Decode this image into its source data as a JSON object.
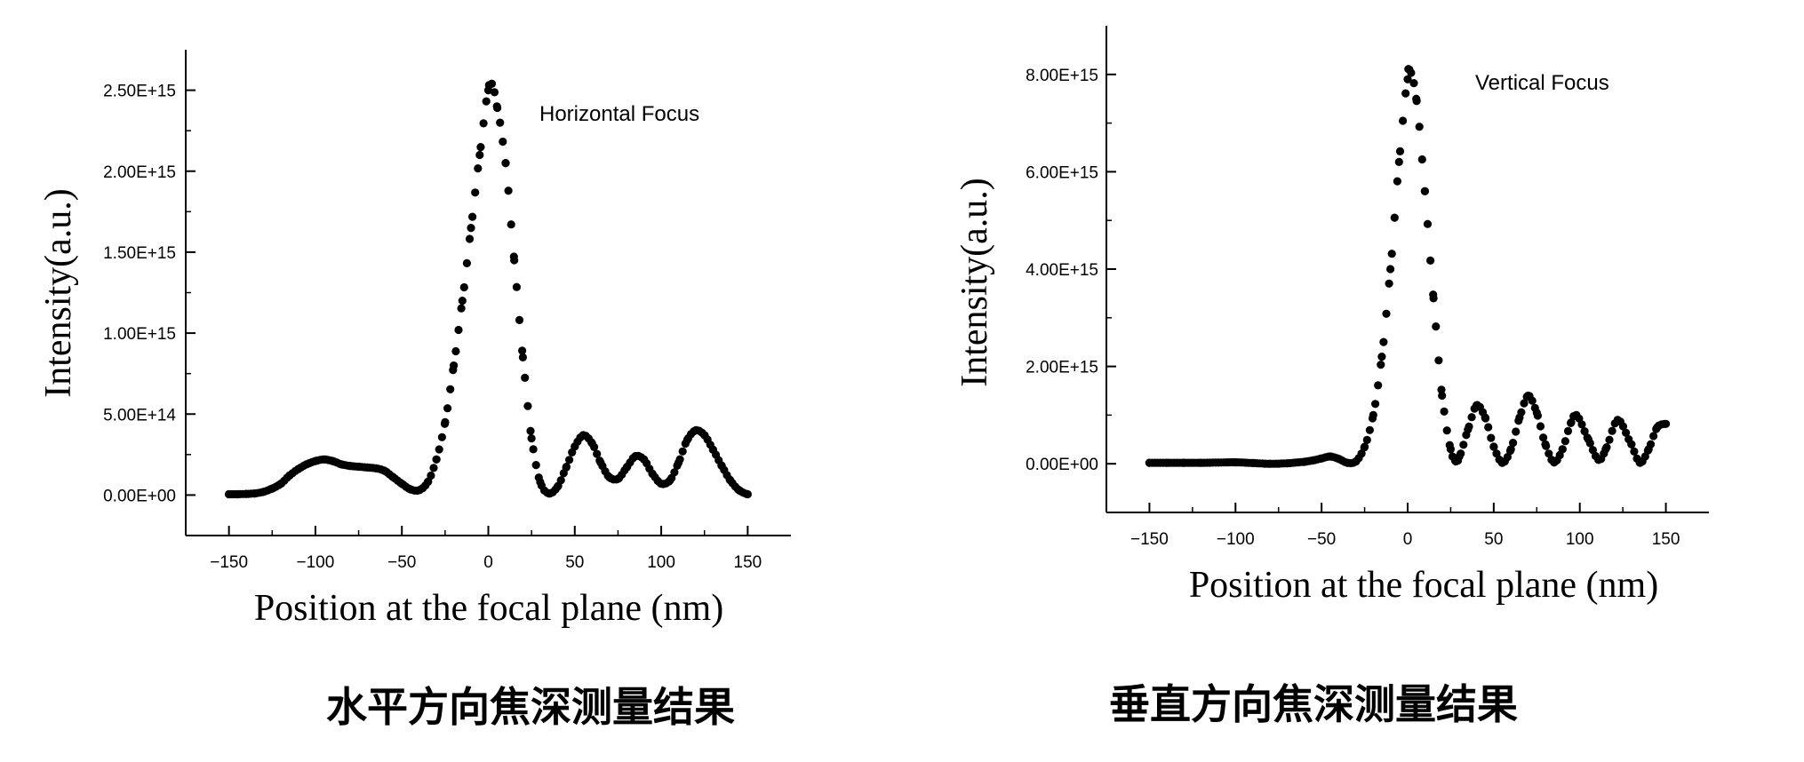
{
  "chart_data": [
    {
      "type": "scatter",
      "annotation": "Horizontal Focus",
      "xlabel": "Position at the focal plane (nm)",
      "ylabel": "Intensity(a.u.)",
      "caption": "水平方向焦深测量结果",
      "xlim": [
        -175,
        175
      ],
      "ylim": [
        -250000000000000.0,
        2750000000000000.0
      ],
      "xticks": [
        -150,
        -100,
        -50,
        0,
        50,
        100,
        150
      ],
      "xtick_labels": [
        "−150",
        "−100",
        "−50",
        "0",
        "50",
        "100",
        "150"
      ],
      "yticks": [
        0,
        500000000000000.0,
        1000000000000000.0,
        1500000000000000.0,
        2000000000000000.0,
        2500000000000000.0
      ],
      "ytick_labels": [
        "0.00E+00",
        "5.00E+14",
        "1.00E+15",
        "1.50E+15",
        "2.00E+15",
        "2.50E+15"
      ],
      "grid": false,
      "marker_color": "#000000",
      "x": [
        -150,
        -145,
        -140,
        -135,
        -130,
        -125,
        -120,
        -115,
        -110,
        -105,
        -100,
        -95,
        -90,
        -85,
        -80,
        -75,
        -70,
        -65,
        -60,
        -55,
        -50,
        -45,
        -40,
        -35,
        -30,
        -25,
        -20,
        -15,
        -10,
        -5,
        0,
        2,
        5,
        10,
        15,
        20,
        25,
        30,
        35,
        40,
        45,
        50,
        55,
        60,
        65,
        70,
        75,
        80,
        85,
        90,
        95,
        100,
        105,
        110,
        115,
        120,
        125,
        130,
        135,
        140,
        145,
        150
      ],
      "y": [
        5000000000000.0,
        5000000000000.0,
        7000000000000.0,
        10000000000000.0,
        20000000000000.0,
        40000000000000.0,
        70000000000000.0,
        120000000000000.0,
        160000000000000.0,
        190000000000000.0,
        210000000000000.0,
        220000000000000.0,
        210000000000000.0,
        190000000000000.0,
        180000000000000.0,
        175000000000000.0,
        170000000000000.0,
        165000000000000.0,
        150000000000000.0,
        110000000000000.0,
        70000000000000.0,
        35000000000000.0,
        30000000000000.0,
        80000000000000.0,
        220000000000000.0,
        450000000000000.0,
        800000000000000.0,
        1200000000000000.0,
        1650000000000000.0,
        2100000000000000.0,
        2500000000000000.0,
        2540000000000000.0,
        2400000000000000.0,
        2050000000000000.0,
        1450000000000000.0,
        850000000000000.0,
        350000000000000.0,
        80000000000000.0,
        10000000000000.0,
        50000000000000.0,
        170000000000000.0,
        300000000000000.0,
        370000000000000.0,
        320000000000000.0,
        200000000000000.0,
        110000000000000.0,
        100000000000000.0,
        170000000000000.0,
        240000000000000.0,
        220000000000000.0,
        130000000000000.0,
        70000000000000.0,
        90000000000000.0,
        200000000000000.0,
        340000000000000.0,
        400000000000000.0,
        370000000000000.0,
        280000000000000.0,
        180000000000000.0,
        90000000000000.0,
        30000000000000.0,
        5000000000000.0
      ]
    },
    {
      "type": "scatter",
      "annotation": "Vertical Focus",
      "xlabel": "Position at the focal plane (nm)",
      "ylabel": "Intensity(a.u.)",
      "caption": "垂直方向焦深测量结果",
      "xlim": [
        -175,
        175
      ],
      "ylim": [
        -1000000000000000.0,
        9000000000000000.0
      ],
      "xticks": [
        -150,
        -100,
        -50,
        0,
        50,
        100,
        150
      ],
      "xtick_labels": [
        "−150",
        "−100",
        "−50",
        "0",
        "50",
        "100",
        "150"
      ],
      "yticks": [
        0,
        2000000000000000.0,
        4000000000000000.0,
        6000000000000000.0,
        8000000000000000.0
      ],
      "ytick_labels": [
        "0.00E+00",
        "2.00E+15",
        "4.00E+15",
        "6.00E+15",
        "8.00E+15"
      ],
      "grid": false,
      "marker_color": "#000000",
      "x": [
        -150,
        -140,
        -130,
        -120,
        -110,
        -100,
        -90,
        -80,
        -70,
        -60,
        -55,
        -50,
        -45,
        -40,
        -35,
        -30,
        -25,
        -20,
        -15,
        -10,
        -5,
        0,
        1,
        5,
        10,
        15,
        20,
        25,
        28,
        30,
        35,
        40,
        45,
        50,
        55,
        60,
        65,
        70,
        75,
        80,
        85,
        90,
        95,
        98,
        105,
        111,
        115,
        122,
        130,
        135,
        140,
        145,
        150
      ],
      "y": [
        20000000000000.0,
        20000000000000.0,
        20000000000000.0,
        20000000000000.0,
        25000000000000.0,
        30000000000000.0,
        15000000000000.0,
        0,
        10000000000000.0,
        40000000000000.0,
        70000000000000.0,
        110000000000000.0,
        150000000000000.0,
        100000000000000.0,
        20000000000000.0,
        50000000000000.0,
        350000000000000.0,
        1000000000000000.0,
        2200000000000000.0,
        4000000000000000.0,
        6200000000000000.0,
        7900000000000000.0,
        8100000000000000.0,
        7500000000000000.0,
        5600000000000000.0,
        3400000000000000.0,
        1400000000000000.0,
        300000000000000.0,
        50000000000000.0,
        150000000000000.0,
        700000000000000.0,
        1200000000000000.0,
        950000000000000.0,
        350000000000000.0,
        20000000000000.0,
        300000000000000.0,
        950000000000000.0,
        1400000000000000.0,
        1050000000000000.0,
        400000000000000.0,
        30000000000000.0,
        300000000000000.0,
        850000000000000.0,
        1000000000000000.0,
        500000000000000.0,
        80000000000000.0,
        300000000000000.0,
        900000000000000.0,
        400000000000000.0,
        20000000000000.0,
        300000000000000.0,
        750000000000000.0,
        820000000000000.0
      ]
    }
  ]
}
